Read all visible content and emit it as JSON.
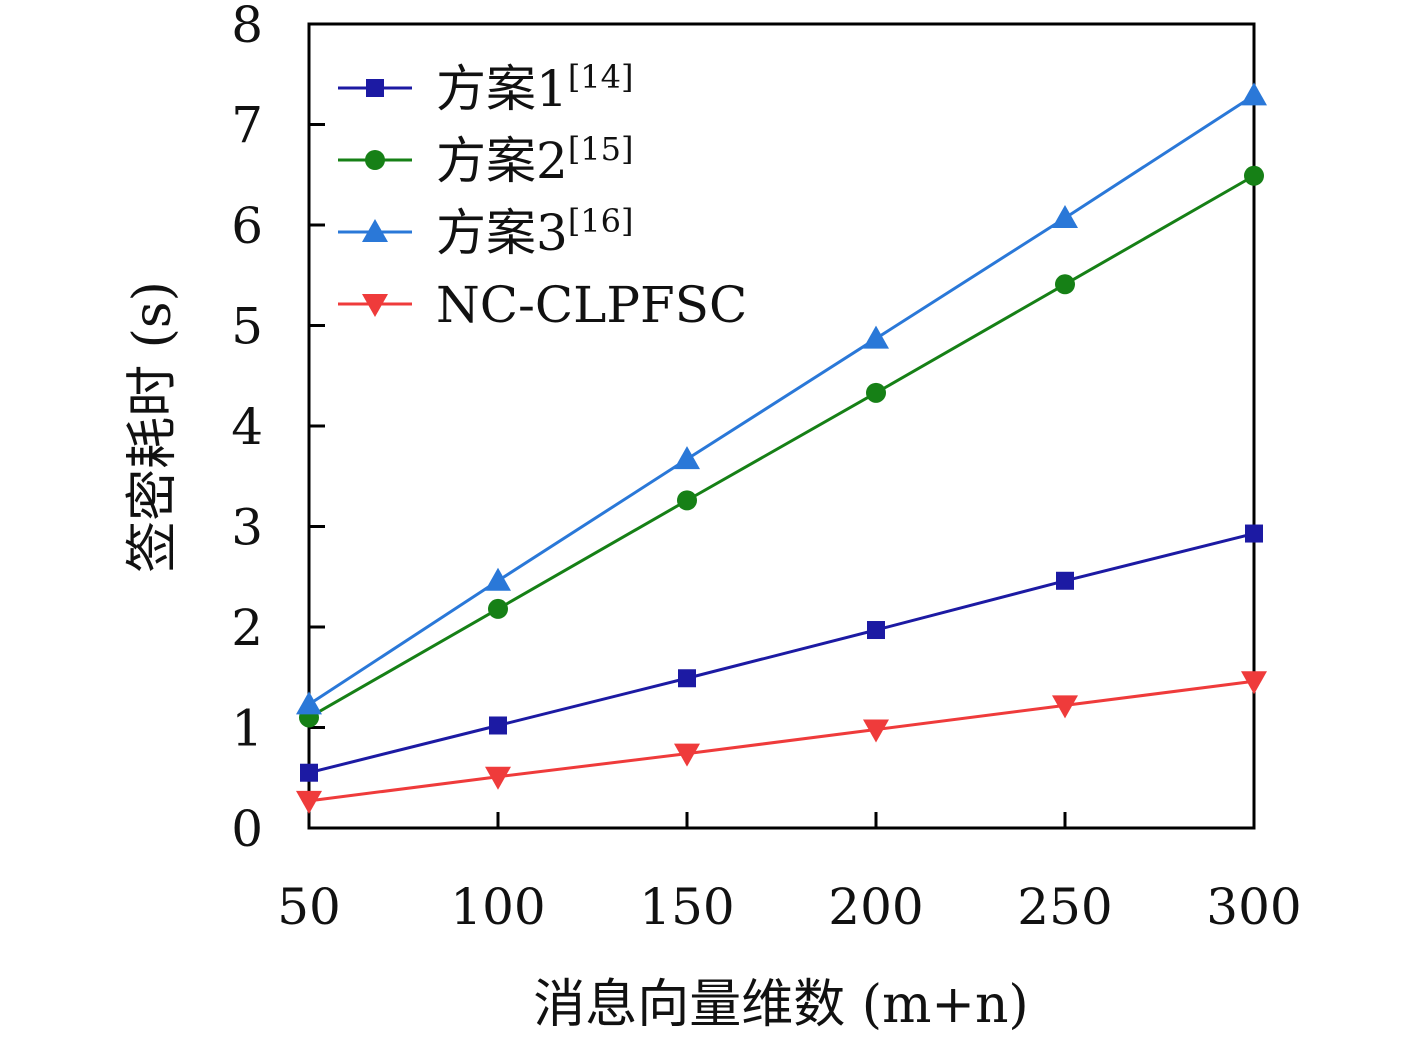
{
  "chart_data": {
    "type": "line",
    "title": "",
    "xlabel": "消息向量维数 (m+n)",
    "ylabel": "签密耗时 (s)",
    "x": [
      50,
      100,
      150,
      200,
      250,
      300
    ],
    "xticks": [
      "50",
      "100",
      "150",
      "200",
      "250",
      "300"
    ],
    "yticks": [
      "0",
      "1",
      "2",
      "3",
      "4",
      "5",
      "6",
      "7",
      "8"
    ],
    "xlim": [
      50,
      300
    ],
    "ylim": [
      0,
      8
    ],
    "grid": false,
    "legend_position": "top-left",
    "series": [
      {
        "name": "方案1",
        "ref": "[14]",
        "marker": "square",
        "color": "#1c1aa3",
        "values": [
          0.55,
          1.02,
          1.49,
          1.97,
          2.46,
          2.93
        ]
      },
      {
        "name": "方案2",
        "ref": "[15]",
        "marker": "circle",
        "color": "#168016",
        "values": [
          1.1,
          2.18,
          3.26,
          4.33,
          5.41,
          6.49
        ]
      },
      {
        "name": "方案3",
        "ref": "[16]",
        "marker": "triangle-up",
        "color": "#2a78d8",
        "values": [
          1.23,
          2.46,
          3.67,
          4.87,
          6.07,
          7.29
        ]
      },
      {
        "name": "NC-CLPFSC",
        "ref": "",
        "marker": "triangle-down",
        "color": "#ef3b3b",
        "values": [
          0.27,
          0.51,
          0.74,
          0.98,
          1.22,
          1.46
        ]
      }
    ]
  }
}
